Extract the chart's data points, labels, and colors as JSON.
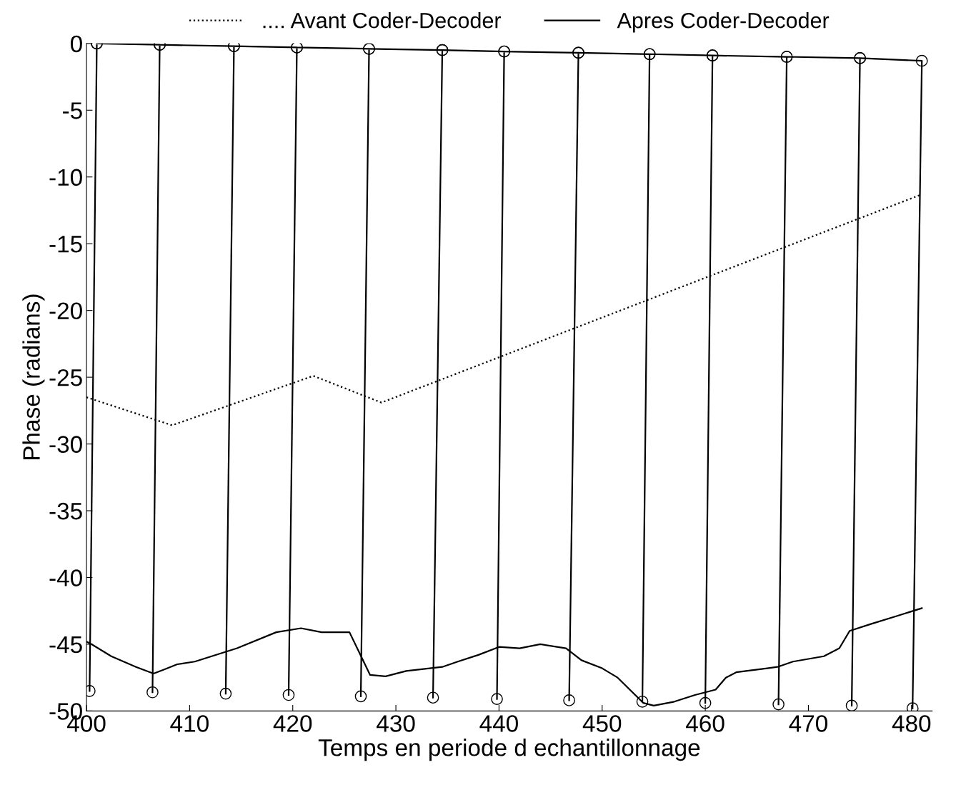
{
  "chart_data": {
    "type": "line",
    "xlabel": "Temps en periode d echantillonnage",
    "ylabel": "Phase (radians)",
    "xlim": [
      400,
      482
    ],
    "ylim": [
      -50,
      0
    ],
    "xticks": [
      400,
      410,
      420,
      430,
      440,
      450,
      460,
      470,
      480
    ],
    "yticks": [
      -50,
      -45,
      -40,
      -35,
      -30,
      -25,
      -20,
      -15,
      -10,
      -5,
      0
    ],
    "grid": false,
    "legend": "top",
    "series": [
      {
        "name": ".... Avant Coder-Decoder",
        "color": "#000000",
        "line_style": "dotted",
        "marker": "none",
        "x": [
          400,
          408.3,
          422,
          428.6,
          481
        ],
        "values": [
          -26.5,
          -28.6,
          -24.9,
          -26.9,
          -11.3
        ]
      },
      {
        "name": "Apres Coder-Decoder",
        "color": "#000000",
        "line_style": "solid",
        "marker": "none",
        "x": [
          400,
          400.5,
          402.4,
          404.8,
          406.5,
          407.5,
          408.8,
          410.5,
          414.6,
          418.4,
          420.8,
          422.8,
          425.5,
          427.5,
          429,
          431,
          434.5,
          436,
          438,
          440,
          442,
          444,
          446.5,
          448,
          450,
          451.5,
          454,
          455,
          457,
          459,
          461,
          462,
          463,
          466,
          467,
          468.5,
          470,
          471.5,
          473,
          474,
          476,
          478.5,
          481
        ],
        "values": [
          -44.8,
          -45.0,
          -45.9,
          -46.7,
          -47.2,
          -46.9,
          -46.5,
          -46.3,
          -45.3,
          -44.1,
          -43.8,
          -44.1,
          -44.1,
          -47.3,
          -47.4,
          -47.0,
          -46.7,
          -46.3,
          -45.8,
          -45.2,
          -45.3,
          -45.0,
          -45.3,
          -46.2,
          -46.8,
          -47.5,
          -49.4,
          -49.6,
          -49.3,
          -48.8,
          -48.4,
          -47.5,
          -47.1,
          -46.8,
          -46.7,
          -46.3,
          -46.1,
          -45.9,
          -45.3,
          -44.0,
          -43.5,
          -42.9,
          -42.3
        ]
      },
      {
        "color": "#000000",
        "line_style": "solid",
        "marker": "circle",
        "x": [
          401.0,
          400.3,
          null,
          401.0,
          407.1,
          406.4,
          null,
          407.1,
          414.3,
          413.5,
          null,
          414.3,
          420.4,
          419.6,
          null,
          420.4,
          427.4,
          426.6,
          null,
          427.4,
          434.5,
          433.6,
          null,
          434.5,
          440.5,
          439.8,
          null,
          440.5,
          447.7,
          446.8,
          null,
          447.7,
          454.6,
          453.9,
          null,
          454.6,
          460.7,
          460.0,
          null,
          460.7,
          467.9,
          467.1,
          null,
          467.9,
          475.0,
          474.2,
          null,
          475.0,
          481.0,
          480.1
        ],
        "values": [
          0,
          -48.5,
          null,
          0,
          -0.1,
          -48.6,
          null,
          -0.1,
          -0.2,
          -48.7,
          null,
          -0.2,
          -0.3,
          -48.8,
          null,
          -0.3,
          -0.4,
          -48.9,
          null,
          -0.4,
          -0.5,
          -49.0,
          null,
          -0.5,
          -0.6,
          -49.1,
          null,
          -0.6,
          -0.7,
          -49.2,
          null,
          -0.7,
          -0.8,
          -49.3,
          null,
          -0.8,
          -0.9,
          -49.4,
          null,
          -0.9,
          -1.0,
          -49.5,
          null,
          -1.0,
          -1.1,
          -49.6,
          null,
          -1.1,
          -1.3,
          -49.8
        ]
      }
    ]
  }
}
